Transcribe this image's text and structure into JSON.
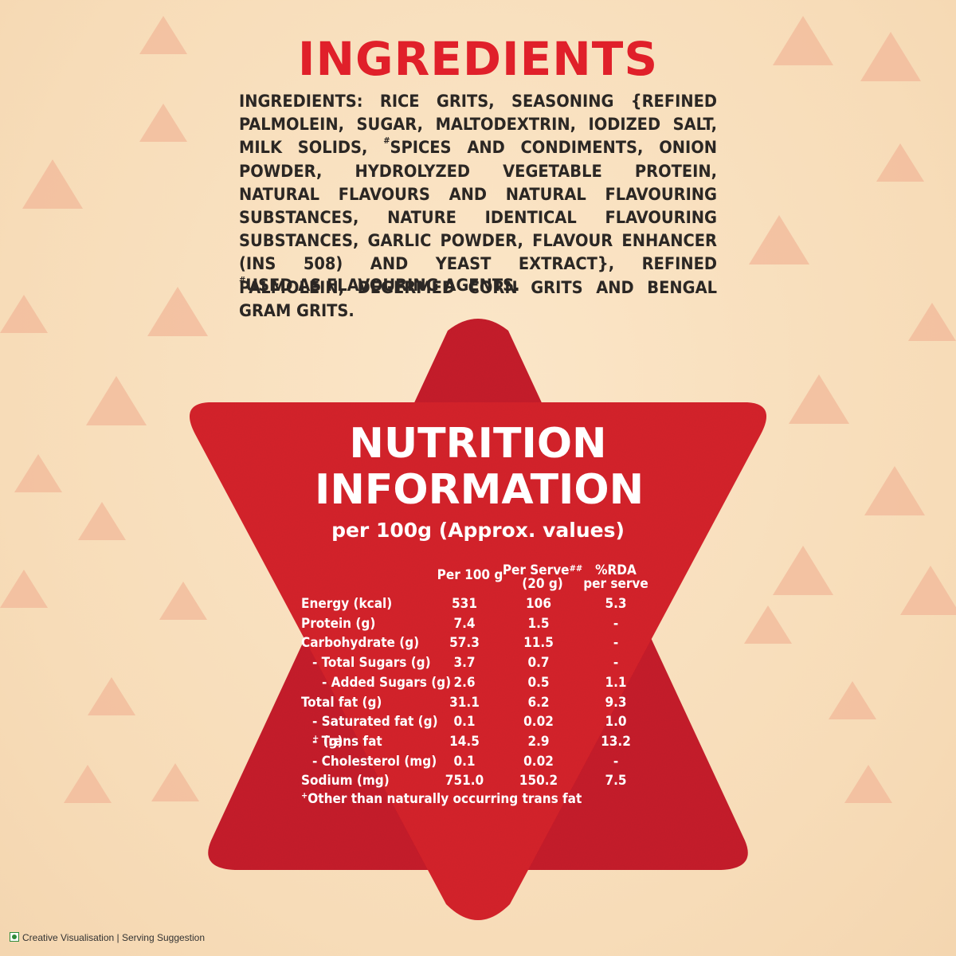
{
  "title": "INGREDIENTS",
  "ingredients_text_a": "INGREDIENTS: RICE GRITS, SEASONING {REFINED PALMOLEIN, SUGAR, MALTODEXTRIN, IODIZED SALT, MILK SOLIDS, ",
  "ingredients_hash": "#",
  "ingredients_text_b": "SPICES AND CONDIMENTS, ONION POWDER, HYDROLYZED VEGETABLE PROTEIN, NATURAL FLAVOURS AND NATURAL FLAVOURING SUBSTANCES, NATURE IDENTICAL FLAVOURING SUBSTANCES, GARLIC POWDER, FLAVOUR ENHANCER (INS 508) AND YEAST EXTRACT}, REFINED PALMOLEIN, DEGERMED CORN GRITS AND BENGAL GRAM GRITS.",
  "footnote_hash": "#",
  "footnote_text": "USED AS FLAVOURING AGENTS.",
  "nutrition": {
    "title_line1": "NUTRITION",
    "title_line2": "INFORMATION",
    "subtitle": "per 100g (Approx. values)",
    "headers": {
      "per100": "Per 100 g",
      "serve_a": "Per Serve",
      "serve_sup": "##",
      "serve_b": "(20 g)",
      "rda_a": "%RDA",
      "rda_b": "per serve"
    },
    "rows": [
      {
        "label": "Energy (kcal)",
        "per100": "531",
        "serve": "106",
        "rda": "5.3"
      },
      {
        "label": "Protein (g)",
        "per100": "7.4",
        "serve": "1.5",
        "rda": "-"
      },
      {
        "label": "Carbohydrate (g)",
        "per100": "57.3",
        "serve": "11.5",
        "rda": "-"
      },
      {
        "label": "- Total Sugars (g)",
        "per100": "3.7",
        "serve": "0.7",
        "rda": "-"
      },
      {
        "label": "- Added Sugars (g)",
        "per100": "2.6",
        "serve": "0.5",
        "rda": "1.1"
      },
      {
        "label": "Total fat (g)",
        "per100": "31.1",
        "serve": "6.2",
        "rda": "9.3"
      },
      {
        "label": "- Saturated fat (g)",
        "per100": "0.1",
        "serve": "0.02",
        "rda": "1.0"
      },
      {
        "label": "- Trans fat",
        "label_sup": "+",
        "label_b": " (g)",
        "per100": "14.5",
        "serve": "2.9",
        "rda": "13.2"
      },
      {
        "label": "- Cholesterol (mg)",
        "per100": "0.1",
        "serve": "0.02",
        "rda": "-"
      },
      {
        "label": "Sodium (mg)",
        "per100": "751.0",
        "serve": "150.2",
        "rda": "7.5"
      }
    ],
    "note_sup": "+",
    "note": "Other than naturally occurring trans fat"
  },
  "legal": "Creative Visualisation | Serving Suggestion",
  "colors": {
    "title_red": "#e0202a",
    "star_red": "#d7262f",
    "background": "#f8dfbd",
    "triangle": "#f2b89a"
  }
}
